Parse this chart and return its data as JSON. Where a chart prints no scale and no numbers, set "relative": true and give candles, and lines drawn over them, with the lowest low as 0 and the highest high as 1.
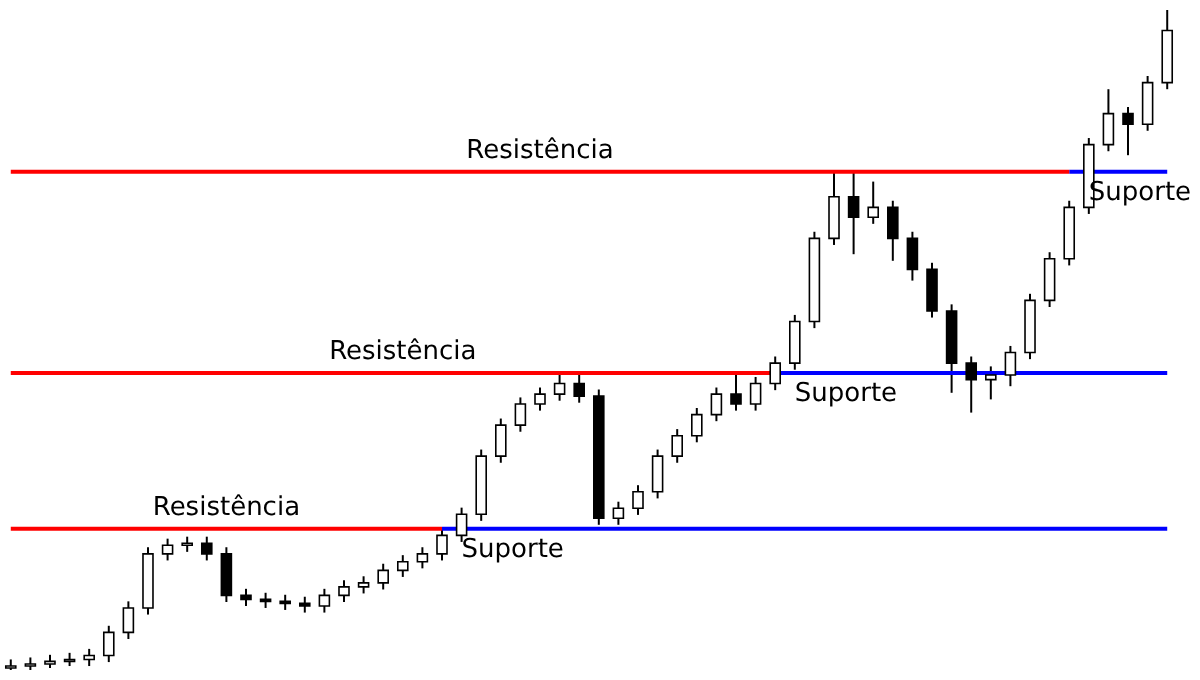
{
  "chart_data": {
    "type": "candlestick",
    "relative": true,
    "tick_labels": false,
    "grid": false,
    "categories": [
      null,
      null,
      null,
      null,
      null,
      null,
      null,
      null,
      null,
      null,
      null,
      null,
      null,
      null,
      null,
      null,
      null,
      null,
      null,
      null,
      null,
      null,
      null,
      null,
      null,
      null,
      null,
      null,
      null,
      null,
      null,
      null,
      null,
      null,
      null,
      null,
      null,
      null,
      null,
      null,
      null,
      null,
      null,
      null,
      null,
      null,
      null,
      null,
      null,
      null,
      null,
      null,
      null,
      null,
      null,
      null,
      null,
      null,
      null,
      null
    ],
    "ohlc": [
      [
        0.003,
        0.016,
        0,
        0.006
      ],
      [
        0.006,
        0.019,
        0,
        0.009
      ],
      [
        0.009,
        0.023,
        0.003,
        0.013
      ],
      [
        0.013,
        0.026,
        0.006,
        0.016
      ],
      [
        0.016,
        0.032,
        0.006,
        0.022
      ],
      [
        0.022,
        0.067,
        0.012,
        0.057
      ],
      [
        0.057,
        0.104,
        0.047,
        0.094
      ],
      [
        0.094,
        0.186,
        0.084,
        0.176
      ],
      [
        0.176,
        0.199,
        0.166,
        0.189
      ],
      [
        0.189,
        0.202,
        0.179,
        0.192
      ],
      [
        0.192,
        0.202,
        0.166,
        0.176
      ],
      [
        0.176,
        0.186,
        0.103,
        0.113
      ],
      [
        0.113,
        0.123,
        0.097,
        0.107
      ],
      [
        0.107,
        0.117,
        0.094,
        0.104
      ],
      [
        0.104,
        0.114,
        0.091,
        0.101
      ],
      [
        0.101,
        0.111,
        0.087,
        0.097
      ],
      [
        0.097,
        0.123,
        0.087,
        0.113
      ],
      [
        0.113,
        0.136,
        0.103,
        0.126
      ],
      [
        0.126,
        0.142,
        0.116,
        0.132
      ],
      [
        0.132,
        0.161,
        0.122,
        0.151
      ],
      [
        0.151,
        0.174,
        0.141,
        0.164
      ],
      [
        0.164,
        0.186,
        0.154,
        0.176
      ],
      [
        0.176,
        0.214,
        0.166,
        0.204
      ],
      [
        0.204,
        0.246,
        0.194,
        0.236
      ],
      [
        0.236,
        0.334,
        0.226,
        0.324
      ],
      [
        0.324,
        0.381,
        0.314,
        0.371
      ],
      [
        0.371,
        0.413,
        0.361,
        0.403
      ],
      [
        0.403,
        0.428,
        0.393,
        0.418
      ],
      [
        0.418,
        0.45,
        0.408,
        0.434
      ],
      [
        0.434,
        0.45,
        0.405,
        0.415
      ],
      [
        0.415,
        0.425,
        0.22,
        0.23
      ],
      [
        0.23,
        0.255,
        0.22,
        0.245
      ],
      [
        0.245,
        0.28,
        0.235,
        0.27
      ],
      [
        0.27,
        0.334,
        0.26,
        0.324
      ],
      [
        0.324,
        0.365,
        0.314,
        0.355
      ],
      [
        0.355,
        0.397,
        0.345,
        0.387
      ],
      [
        0.387,
        0.428,
        0.377,
        0.418
      ],
      [
        0.418,
        0.45,
        0.393,
        0.403
      ],
      [
        0.403,
        0.444,
        0.393,
        0.434
      ],
      [
        0.434,
        0.475,
        0.424,
        0.465
      ],
      [
        0.465,
        0.538,
        0.455,
        0.528
      ],
      [
        0.528,
        0.664,
        0.518,
        0.654
      ],
      [
        0.654,
        0.755,
        0.644,
        0.717
      ],
      [
        0.717,
        0.755,
        0.63,
        0.686
      ],
      [
        0.686,
        0.74,
        0.676,
        0.701
      ],
      [
        0.701,
        0.711,
        0.62,
        0.654
      ],
      [
        0.654,
        0.664,
        0.59,
        0.607
      ],
      [
        0.607,
        0.617,
        0.534,
        0.544
      ],
      [
        0.544,
        0.554,
        0.42,
        0.465
      ],
      [
        0.465,
        0.475,
        0.39,
        0.44
      ],
      [
        0.44,
        0.46,
        0.41,
        0.447
      ],
      [
        0.447,
        0.491,
        0.43,
        0.481
      ],
      [
        0.481,
        0.57,
        0.471,
        0.56
      ],
      [
        0.56,
        0.633,
        0.55,
        0.623
      ],
      [
        0.623,
        0.711,
        0.613,
        0.701
      ],
      [
        0.701,
        0.806,
        0.691,
        0.796
      ],
      [
        0.796,
        0.88,
        0.786,
        0.843
      ],
      [
        0.843,
        0.853,
        0.78,
        0.827
      ],
      [
        0.827,
        0.9,
        0.817,
        0.89
      ],
      [
        0.89,
        1,
        0.88,
        0.969
      ]
    ],
    "series": [
      {
        "name": "Resistência",
        "type": "line",
        "color": "#ff0000",
        "values": [
          0.214,
          0.214,
          0.214,
          0.214,
          0.214,
          0.214,
          0.214,
          0.214,
          0.214,
          0.214,
          0.214,
          0.214,
          0.214,
          0.214,
          0.214,
          0.214,
          0.214,
          0.214,
          0.214,
          0.214,
          0.214,
          0.214,
          0.214,
          null,
          null,
          null,
          null,
          null,
          null,
          null,
          null,
          null,
          null,
          null,
          null,
          null,
          null,
          null,
          null,
          null,
          null,
          null,
          null,
          null,
          null,
          null,
          null,
          null,
          null,
          null,
          null,
          null,
          null,
          null,
          null,
          null,
          null,
          null,
          null,
          null
        ]
      },
      {
        "name": "Suporte",
        "type": "line",
        "color": "#0000ff",
        "values": [
          null,
          null,
          null,
          null,
          null,
          null,
          null,
          null,
          null,
          null,
          null,
          null,
          null,
          null,
          null,
          null,
          null,
          null,
          null,
          null,
          null,
          null,
          0.214,
          0.214,
          0.214,
          0.214,
          0.214,
          0.214,
          0.214,
          0.214,
          0.214,
          0.214,
          0.214,
          0.214,
          0.214,
          0.214,
          0.214,
          0.214,
          0.214,
          0.214,
          0.214,
          0.214,
          0.214,
          0.214,
          0.214,
          0.214,
          0.214,
          0.214,
          0.214,
          0.214,
          0.214,
          0.214,
          0.214,
          0.214,
          0.214,
          0.214,
          0.214,
          0.214,
          0.214,
          0.214
        ]
      },
      {
        "name": "Resistência",
        "type": "line",
        "color": "#ff0000",
        "values": [
          0.45,
          0.45,
          0.45,
          0.45,
          0.45,
          0.45,
          0.45,
          0.45,
          0.45,
          0.45,
          0.45,
          0.45,
          0.45,
          0.45,
          0.45,
          0.45,
          0.45,
          0.45,
          0.45,
          0.45,
          0.45,
          0.45,
          0.45,
          0.45,
          0.45,
          0.45,
          0.45,
          0.45,
          0.45,
          0.45,
          0.45,
          0.45,
          0.45,
          0.45,
          0.45,
          0.45,
          0.45,
          0.45,
          0.45,
          0.45,
          null,
          null,
          null,
          null,
          null,
          null,
          null,
          null,
          null,
          null,
          null,
          null,
          null,
          null,
          null,
          null,
          null,
          null,
          null,
          null
        ]
      },
      {
        "name": "Suporte",
        "type": "line",
        "color": "#0000ff",
        "values": [
          null,
          null,
          null,
          null,
          null,
          null,
          null,
          null,
          null,
          null,
          null,
          null,
          null,
          null,
          null,
          null,
          null,
          null,
          null,
          null,
          null,
          null,
          null,
          null,
          null,
          null,
          null,
          null,
          null,
          null,
          null,
          null,
          null,
          null,
          null,
          null,
          null,
          null,
          null,
          0.45,
          0.45,
          0.45,
          0.45,
          0.45,
          0.45,
          0.45,
          0.45,
          0.45,
          0.45,
          0.45,
          0.45,
          0.45,
          0.45,
          0.45,
          0.45,
          0.45,
          0.45,
          0.45,
          0.45,
          0.45
        ]
      },
      {
        "name": "Resistência",
        "type": "line",
        "color": "#ff0000",
        "values": [
          0.755,
          0.755,
          0.755,
          0.755,
          0.755,
          0.755,
          0.755,
          0.755,
          0.755,
          0.755,
          0.755,
          0.755,
          0.755,
          0.755,
          0.755,
          0.755,
          0.755,
          0.755,
          0.755,
          0.755,
          0.755,
          0.755,
          0.755,
          0.755,
          0.755,
          0.755,
          0.755,
          0.755,
          0.755,
          0.755,
          0.755,
          0.755,
          0.755,
          0.755,
          0.755,
          0.755,
          0.755,
          0.755,
          0.755,
          0.755,
          0.755,
          0.755,
          0.755,
          0.755,
          0.755,
          0.755,
          0.755,
          0.755,
          0.755,
          0.755,
          0.755,
          0.755,
          0.755,
          0.755,
          0.755,
          null,
          null,
          null,
          null,
          null
        ]
      },
      {
        "name": "Suporte",
        "type": "line",
        "color": "#0000ff",
        "values": [
          null,
          null,
          null,
          null,
          null,
          null,
          null,
          null,
          null,
          null,
          null,
          null,
          null,
          null,
          null,
          null,
          null,
          null,
          null,
          null,
          null,
          null,
          null,
          null,
          null,
          null,
          null,
          null,
          null,
          null,
          null,
          null,
          null,
          null,
          null,
          null,
          null,
          null,
          null,
          null,
          null,
          null,
          null,
          null,
          null,
          null,
          null,
          null,
          null,
          null,
          null,
          null,
          null,
          null,
          0.755,
          0.755,
          0.755,
          0.755,
          0.755,
          0.755
        ]
      }
    ]
  }
}
